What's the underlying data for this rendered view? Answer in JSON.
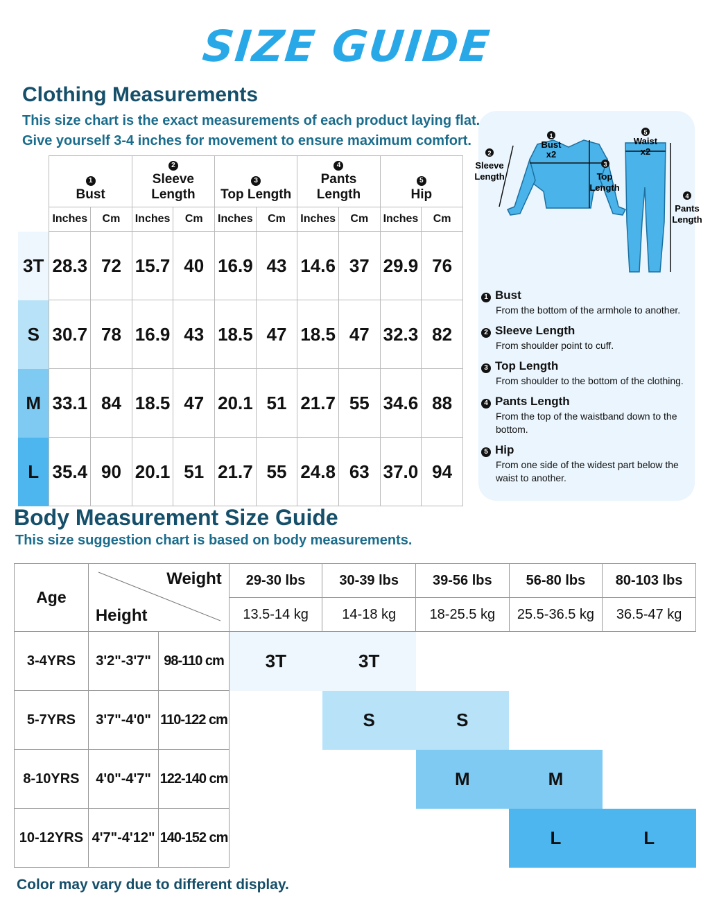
{
  "title": "SIZE GUIDE",
  "clothing": {
    "heading": "Clothing Measurements",
    "lines": [
      "This size chart is the exact measurements of each product laying flat.",
      "Give yourself 3-4 inches for movement to ensure maximum comfort."
    ],
    "columns": [
      {
        "num": "1",
        "label": "Bust"
      },
      {
        "num": "2",
        "label": "Sleeve Length"
      },
      {
        "num": "3",
        "label": "Top Length"
      },
      {
        "num": "4",
        "label": "Pants Length"
      },
      {
        "num": "5",
        "label": "Hip"
      }
    ],
    "unit_in": "Inches",
    "unit_cm": "Cm",
    "rows": [
      {
        "size": "3T",
        "values": [
          "28.3",
          "72",
          "15.7",
          "40",
          "16.9",
          "43",
          "14.6",
          "37",
          "29.9",
          "76"
        ],
        "color": "#eef7fd"
      },
      {
        "size": "S",
        "values": [
          "30.7",
          "78",
          "16.9",
          "43",
          "18.5",
          "47",
          "18.5",
          "47",
          "32.3",
          "82"
        ],
        "color": "#b7e2f8"
      },
      {
        "size": "M",
        "values": [
          "33.1",
          "84",
          "18.5",
          "47",
          "20.1",
          "51",
          "21.7",
          "55",
          "34.6",
          "88"
        ],
        "color": "#7fcaf2"
      },
      {
        "size": "L",
        "values": [
          "35.4",
          "90",
          "20.1",
          "51",
          "21.7",
          "55",
          "24.8",
          "63",
          "37.0",
          "94"
        ],
        "color": "#4db6ef"
      }
    ]
  },
  "figure": {
    "bust": "Bust",
    "x2": "x2",
    "sleeve": [
      "Sleeve",
      "Length"
    ],
    "top": [
      "Top",
      "Length"
    ],
    "waist": "Waist",
    "pants": [
      "Pants",
      "Length"
    ],
    "garment_color": "#4ab3ea"
  },
  "definitions": [
    {
      "num": "1",
      "title": "Bust",
      "desc": "From the bottom of the armhole to another."
    },
    {
      "num": "2",
      "title": "Sleeve Length",
      "desc": "From shoulder point to cuff."
    },
    {
      "num": "3",
      "title": "Top Length",
      "desc": "From shoulder to the bottom of the clothing."
    },
    {
      "num": "4",
      "title": "Pants Length",
      "desc": "From the top of the waistband down to the bottom."
    },
    {
      "num": "5",
      "title": "Hip",
      "desc": "From one side of the widest part below the waist to another."
    }
  ],
  "body": {
    "heading": "Body Measurement Size Guide",
    "subtitle": "This size suggestion chart is based on body measurements.",
    "age_label": "Age",
    "weight_label": "Weight",
    "height_label": "Height",
    "weights_lbs": [
      "29-30 lbs",
      "30-39 lbs",
      "39-56 lbs",
      "56-80 lbs",
      "80-103 lbs"
    ],
    "weights_kg": [
      "13.5-14 kg",
      "14-18 kg",
      "18-25.5 kg",
      "25.5-36.5 kg",
      "36.5-47 kg"
    ],
    "rows": [
      {
        "age": "3-4YRS",
        "height_ft": "3'2\"-3'7\"",
        "height_cm": "98-110 cm",
        "start": 0,
        "sizes": [
          "3T",
          "3T"
        ],
        "color": "#eef7fd"
      },
      {
        "age": "5-7YRS",
        "height_ft": "3'7\"-4'0\"",
        "height_cm": "110-122 cm",
        "start": 1,
        "sizes": [
          "S",
          "S"
        ],
        "color": "#b7e2f8"
      },
      {
        "age": "8-10YRS",
        "height_ft": "4'0\"-4'7\"",
        "height_cm": "122-140 cm",
        "start": 2,
        "sizes": [
          "M",
          "M"
        ],
        "color": "#7fcaf2"
      },
      {
        "age": "10-12YRS",
        "height_ft": "4'7\"-4'12\"",
        "height_cm": "140-152 cm",
        "start": 3,
        "sizes": [
          "L",
          "L"
        ],
        "color": "#4db6ef"
      }
    ]
  },
  "footer": "Color may vary due to different display."
}
